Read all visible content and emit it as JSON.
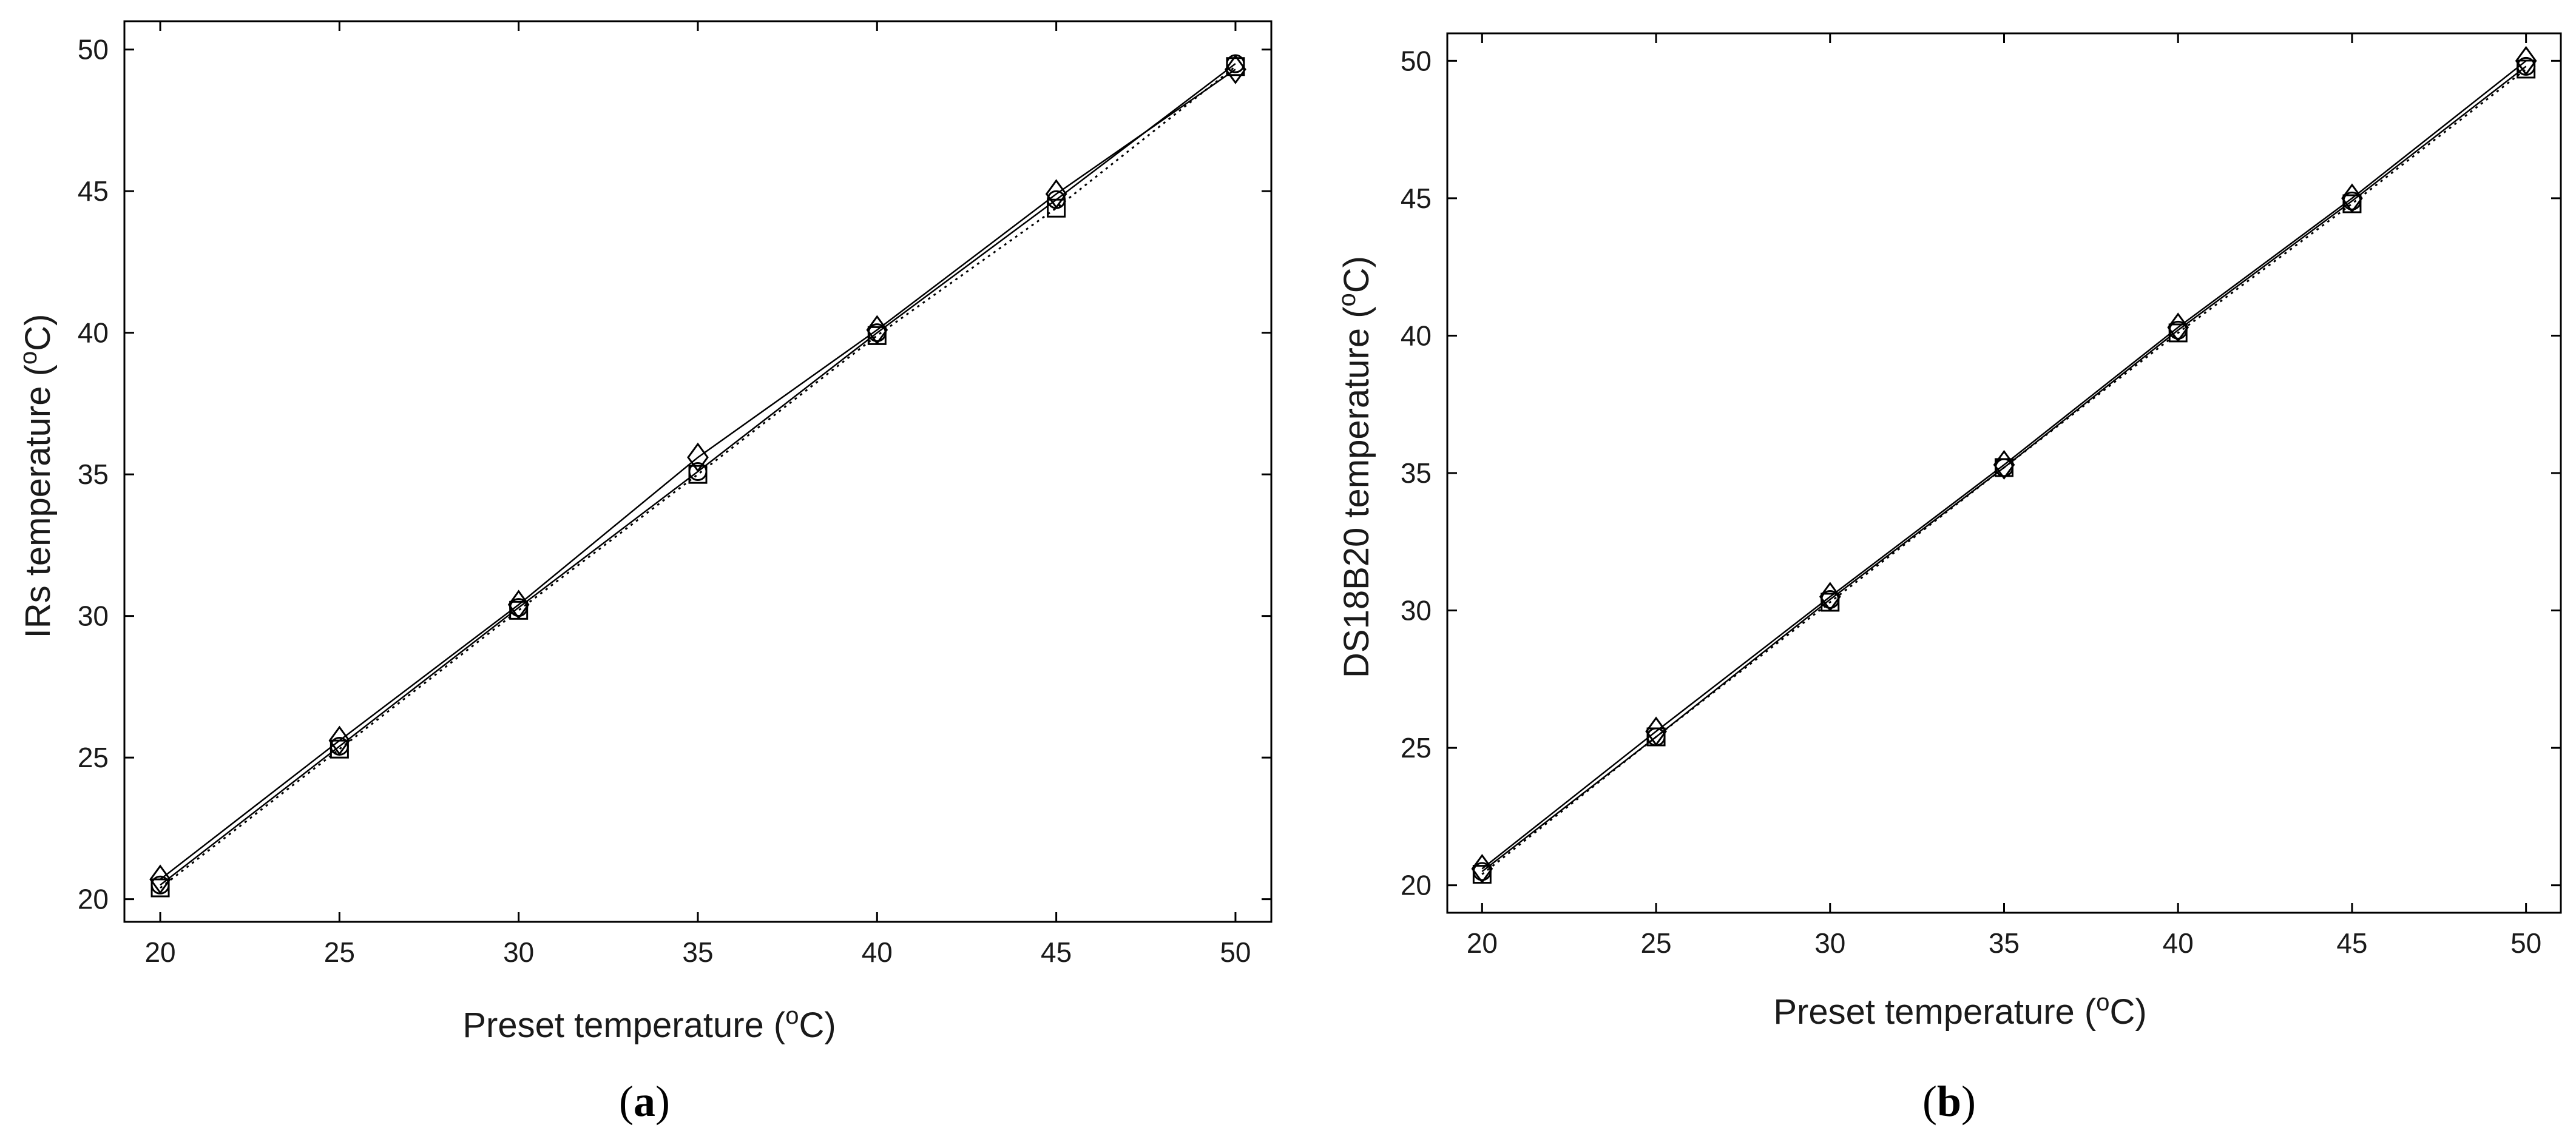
{
  "chart_data": [
    {
      "type": "scatter",
      "panel_label": "a",
      "xlabel": "Preset temperature (",
      "ylabel": "IRs temperature (",
      "unit_sup": "o",
      "unit_tail": "C)",
      "xlim": [
        19,
        51
      ],
      "ylim": [
        19.2,
        51
      ],
      "xticks": [
        "20",
        "25",
        "30",
        "35",
        "40",
        "45",
        "50"
      ],
      "yticks": [
        "20",
        "25",
        "30",
        "35",
        "40",
        "45",
        "50"
      ],
      "grid": false,
      "series": [
        {
          "marker": "square",
          "line": "dotted",
          "x": [
            20,
            25,
            30,
            35,
            40,
            45,
            50
          ],
          "y": [
            20.4,
            25.3,
            30.2,
            35.0,
            39.9,
            44.4,
            49.4
          ]
        },
        {
          "marker": "circle",
          "line": "solid",
          "x": [
            20,
            25,
            30,
            35,
            40,
            45,
            50
          ],
          "y": [
            20.5,
            25.4,
            30.3,
            35.1,
            40.0,
            44.7,
            49.5
          ]
        },
        {
          "marker": "diamond",
          "line": "solid",
          "x": [
            20,
            25,
            30,
            35,
            40,
            45,
            50
          ],
          "y": [
            20.7,
            25.6,
            30.4,
            35.6,
            40.1,
            44.9,
            49.3
          ]
        }
      ]
    },
    {
      "type": "scatter",
      "panel_label": "b",
      "xlabel": "Preset temperature (",
      "ylabel": "DS18B20 temperature (",
      "unit_sup": "o",
      "unit_tail": "C)",
      "xlim": [
        19,
        51
      ],
      "ylim": [
        19,
        51
      ],
      "xticks": [
        "20",
        "25",
        "30",
        "35",
        "40",
        "45",
        "50"
      ],
      "yticks": [
        "20",
        "25",
        "30",
        "35",
        "40",
        "45",
        "50"
      ],
      "grid": false,
      "series": [
        {
          "marker": "square",
          "line": "dotted",
          "x": [
            20,
            25,
            30,
            35,
            40,
            45,
            50
          ],
          "y": [
            20.4,
            25.4,
            30.3,
            35.2,
            40.1,
            44.8,
            49.7
          ]
        },
        {
          "marker": "circle",
          "line": "solid",
          "x": [
            20,
            25,
            30,
            35,
            40,
            45,
            50
          ],
          "y": [
            20.5,
            25.4,
            30.4,
            35.2,
            40.2,
            44.9,
            49.8
          ]
        },
        {
          "marker": "diamond",
          "line": "solid",
          "x": [
            20,
            25,
            30,
            35,
            40,
            45,
            50
          ],
          "y": [
            20.6,
            25.6,
            30.5,
            35.3,
            40.3,
            45.0,
            50.0
          ]
        }
      ]
    }
  ]
}
